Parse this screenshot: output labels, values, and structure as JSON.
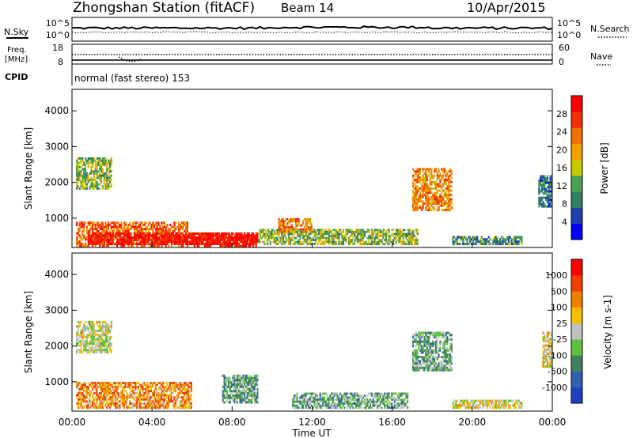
{
  "header": {
    "station": "Zhongshan Station (fitACF)",
    "beam": "Beam 14",
    "date": "10/Apr/2015"
  },
  "top_panels": {
    "nsky": {
      "label": "N.Sky",
      "tick_hi": "10^5",
      "tick_lo": "10^0",
      "right_label": "N.Search",
      "right_tick_hi": "10^5",
      "right_tick_lo": "10^0"
    },
    "freq": {
      "label_line1": "Freq.",
      "label_line2": "[MHz]",
      "tick_hi": "18",
      "tick_lo": "8",
      "right_label": "Nave",
      "right_tick_hi": "60",
      "right_tick_lo": "0"
    },
    "cpid": {
      "label": "CPID",
      "mode": "normal (fast stereo) 153"
    }
  },
  "x_axis": {
    "label": "Time UT",
    "ticks": [
      "00:00",
      "04:00",
      "08:00",
      "12:00",
      "16:00",
      "20:00",
      "00:00"
    ]
  },
  "power_panel": {
    "ylabel": "Slant Range [km]",
    "yticks": [
      "1000",
      "2000",
      "3000",
      "4000"
    ],
    "colorbar_label": "Power [dB]",
    "colorbar_ticks": [
      "4",
      "8",
      "12",
      "16",
      "20",
      "24",
      "28"
    ],
    "colors": [
      "#0000ff",
      "#2040b0",
      "#308060",
      "#48a050",
      "#c8c800",
      "#f0a000",
      "#f07000",
      "#f03000",
      "#ff0000"
    ]
  },
  "velocity_panel": {
    "ylabel": "Slant Range [km]",
    "yticks": [
      "1000",
      "2000",
      "3000",
      "4000"
    ],
    "colorbar_label": "Velocity [m s-1]",
    "colorbar_ticks": [
      "1000",
      "500",
      "100",
      "25",
      "-25",
      "-100",
      "-500",
      "-1000"
    ],
    "colors": [
      "#2040c0",
      "#3060b0",
      "#408060",
      "#60c040",
      "#c0c0c0",
      "#f0c000",
      "#f08000",
      "#f04000",
      "#ff0000"
    ]
  },
  "chart_data": [
    {
      "type": "heatmap",
      "title": "Power",
      "xlabel": "Time UT",
      "ylabel": "Slant Range [km]",
      "xlim": [
        0,
        24
      ],
      "ylim": [
        180,
        4600
      ],
      "colorbar": {
        "label": "Power [dB]",
        "range": [
          0,
          32
        ]
      },
      "regions": [
        {
          "t": [
            0.2,
            5.8
          ],
          "r": [
            200,
            900
          ],
          "value": 24
        },
        {
          "t": [
            0.8,
            9.3
          ],
          "r": [
            250,
            600
          ],
          "value": 30
        },
        {
          "t": [
            5.8,
            9.3
          ],
          "r": [
            200,
            600
          ],
          "value": 30
        },
        {
          "t": [
            0.2,
            2.0
          ],
          "r": [
            1800,
            2700
          ],
          "value": 14
        },
        {
          "t": [
            9.3,
            17.3
          ],
          "r": [
            250,
            700
          ],
          "value": 14
        },
        {
          "t": [
            10.3,
            12.0
          ],
          "r": [
            600,
            1000
          ],
          "value": 22
        },
        {
          "t": [
            17.0,
            19.0
          ],
          "r": [
            1200,
            2400
          ],
          "value": 22
        },
        {
          "t": [
            19.0,
            22.5
          ],
          "r": [
            250,
            500
          ],
          "value": 10
        },
        {
          "t": [
            23.3,
            24.0
          ],
          "r": [
            1300,
            2200
          ],
          "value": 8
        }
      ]
    },
    {
      "type": "heatmap",
      "title": "Velocity",
      "xlabel": "Time UT",
      "ylabel": "Slant Range [km]",
      "xlim": [
        0,
        24
      ],
      "ylim": [
        180,
        4600
      ],
      "colorbar": {
        "label": "Velocity [m s-1]",
        "range": [
          -1000,
          1000
        ]
      },
      "regions": [
        {
          "t": [
            0.2,
            6.0
          ],
          "r": [
            250,
            1000
          ],
          "value": 400
        },
        {
          "t": [
            0.2,
            2.0
          ],
          "r": [
            1800,
            2700
          ],
          "value": 0
        },
        {
          "t": [
            7.5,
            9.3
          ],
          "r": [
            400,
            1200
          ],
          "value": -300
        },
        {
          "t": [
            11.0,
            16.8
          ],
          "r": [
            250,
            700
          ],
          "value": -300
        },
        {
          "t": [
            17.0,
            19.0
          ],
          "r": [
            1300,
            2400
          ],
          "value": -300
        },
        {
          "t": [
            19.0,
            22.5
          ],
          "r": [
            250,
            500
          ],
          "value": 80
        },
        {
          "t": [
            23.5,
            24.0
          ],
          "r": [
            1400,
            2400
          ],
          "value": 100
        }
      ]
    }
  ]
}
